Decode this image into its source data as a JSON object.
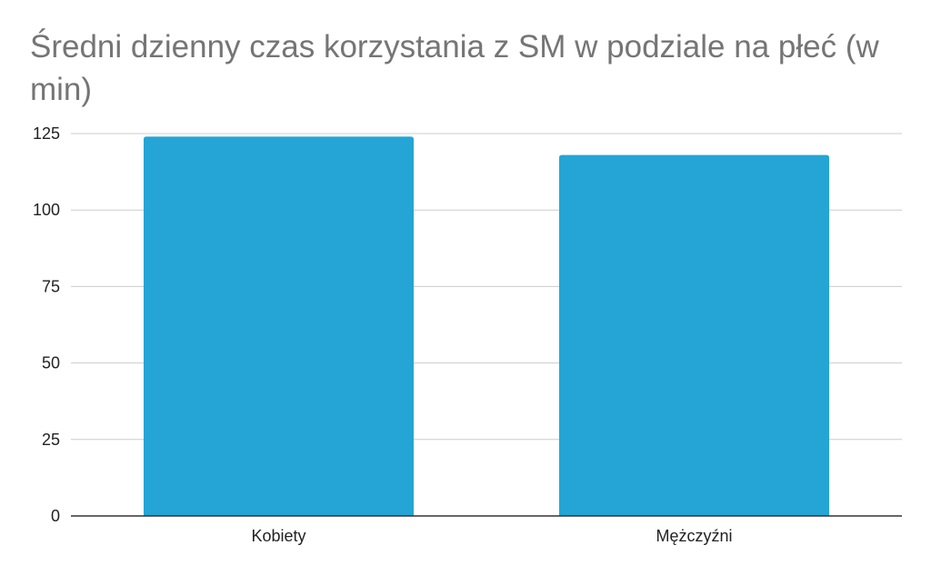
{
  "chart_data": {
    "type": "bar",
    "title": "Średni dzienny czas korzystania z SM w podziale na płeć (w min)",
    "xlabel": "",
    "ylabel": "",
    "categories": [
      "Kobiety",
      "Mężczyźni"
    ],
    "values": [
      124,
      118
    ],
    "ylim": [
      0,
      125
    ],
    "yticks": [
      "0",
      "25",
      "50",
      "75",
      "100",
      "125"
    ],
    "grid": true,
    "legend": "none",
    "bar_color": "#24a5d5",
    "grid_color": "#cccccc",
    "axis_color": "#333333"
  }
}
